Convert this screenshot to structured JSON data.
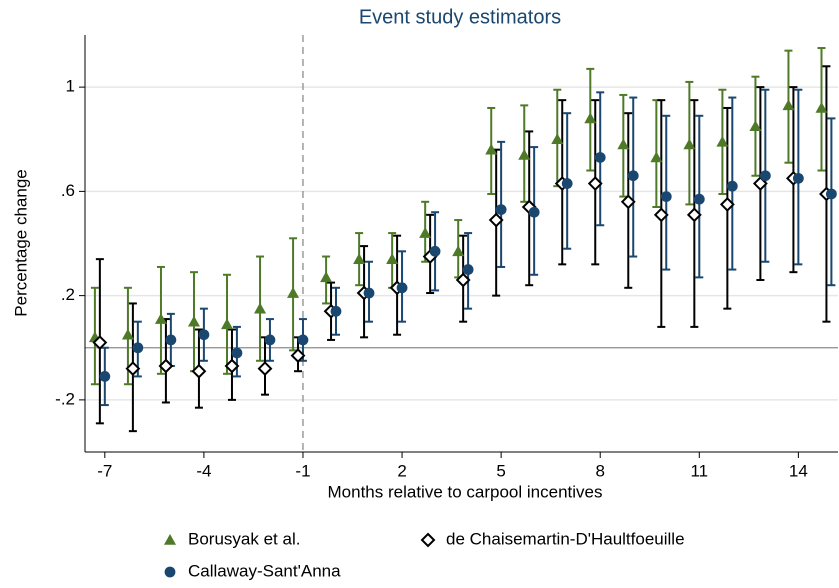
{
  "chart_data": {
    "type": "errorbar",
    "title": "Event study estimators",
    "x_label": "Months relative to carpool incentives",
    "y_label": "Percentage change",
    "x": [
      -7,
      -6,
      -5,
      -4,
      -3,
      -2,
      -1,
      0,
      1,
      2,
      3,
      4,
      5,
      6,
      7,
      8,
      9,
      10,
      11,
      12,
      13,
      14,
      15
    ],
    "xlim": [
      -7.6,
      15.2
    ],
    "xticks": [
      -7,
      -4,
      -1,
      2,
      5,
      8,
      11,
      14
    ],
    "ylim": [
      -0.4,
      1.2
    ],
    "yticks": [
      {
        "value": -0.2,
        "label": "-.2"
      },
      {
        "value": 0.2,
        "label": ".2"
      },
      {
        "value": 0.6,
        "label": ".6"
      },
      1
    ],
    "grid": true,
    "hline": 0,
    "vline": -1,
    "series": [
      {
        "name": "Borusyak et al.",
        "marker": "triangle",
        "color": "#4e7a28",
        "values": [
          0.04,
          0.05,
          0.11,
          0.1,
          0.09,
          0.15,
          0.21,
          0.27,
          0.34,
          0.34,
          0.44,
          0.37,
          0.76,
          0.74,
          0.8,
          0.88,
          0.78,
          0.73,
          0.78,
          0.79,
          0.85,
          0.93,
          0.92
        ],
        "lower": [
          -0.14,
          -0.14,
          -0.1,
          -0.09,
          -0.1,
          -0.05,
          -0.01,
          0.17,
          0.24,
          0.23,
          0.33,
          0.27,
          0.59,
          0.56,
          0.62,
          0.68,
          0.58,
          0.54,
          0.55,
          0.59,
          0.66,
          0.71,
          0.68
        ],
        "upper": [
          0.23,
          0.23,
          0.31,
          0.29,
          0.28,
          0.35,
          0.42,
          0.35,
          0.44,
          0.44,
          0.56,
          0.49,
          0.92,
          0.93,
          0.99,
          1.07,
          0.97,
          0.95,
          1.02,
          0.99,
          1.04,
          1.14,
          1.15
        ]
      },
      {
        "name": "de Chaisemartin-D'Haultfoeuille",
        "marker": "diamond",
        "color": "#000000",
        "values": [
          0.02,
          -0.08,
          -0.07,
          -0.09,
          -0.07,
          -0.08,
          -0.03,
          0.14,
          0.21,
          0.23,
          0.35,
          0.26,
          0.49,
          0.54,
          0.63,
          0.63,
          0.56,
          0.51,
          0.51,
          0.55,
          0.63,
          0.65,
          0.59
        ],
        "lower": [
          -0.29,
          -0.32,
          -0.21,
          -0.23,
          -0.2,
          -0.18,
          -0.09,
          0.03,
          0.04,
          0.05,
          0.21,
          0.1,
          0.2,
          0.24,
          0.32,
          0.32,
          0.23,
          0.08,
          0.08,
          0.15,
          0.26,
          0.29,
          0.1
        ],
        "upper": [
          0.34,
          0.17,
          0.11,
          0.07,
          0.07,
          0.04,
          0.04,
          0.25,
          0.39,
          0.43,
          0.51,
          0.43,
          0.76,
          0.83,
          0.95,
          0.95,
          0.9,
          0.95,
          0.95,
          0.92,
          1.0,
          1.0,
          1.08
        ]
      },
      {
        "name": "Callaway-Sant'Anna",
        "marker": "circle",
        "color": "#1a476f",
        "values": [
          -0.11,
          0.0,
          0.03,
          0.05,
          -0.02,
          0.03,
          0.03,
          0.14,
          0.21,
          0.23,
          0.37,
          0.3,
          0.53,
          0.52,
          0.63,
          0.73,
          0.66,
          0.58,
          0.57,
          0.62,
          0.66,
          0.65,
          0.59
        ],
        "lower": [
          -0.22,
          -0.11,
          -0.07,
          -0.05,
          -0.11,
          -0.05,
          -0.05,
          0.05,
          0.1,
          0.1,
          0.22,
          0.15,
          0.31,
          0.28,
          0.38,
          0.47,
          0.35,
          0.3,
          0.27,
          0.3,
          0.33,
          0.32,
          0.24
        ],
        "upper": [
          0.0,
          0.1,
          0.13,
          0.15,
          0.08,
          0.11,
          0.11,
          0.23,
          0.33,
          0.37,
          0.52,
          0.44,
          0.79,
          0.77,
          0.9,
          0.98,
          0.96,
          0.89,
          0.89,
          0.96,
          0.99,
          0.99,
          0.88
        ]
      }
    ]
  }
}
